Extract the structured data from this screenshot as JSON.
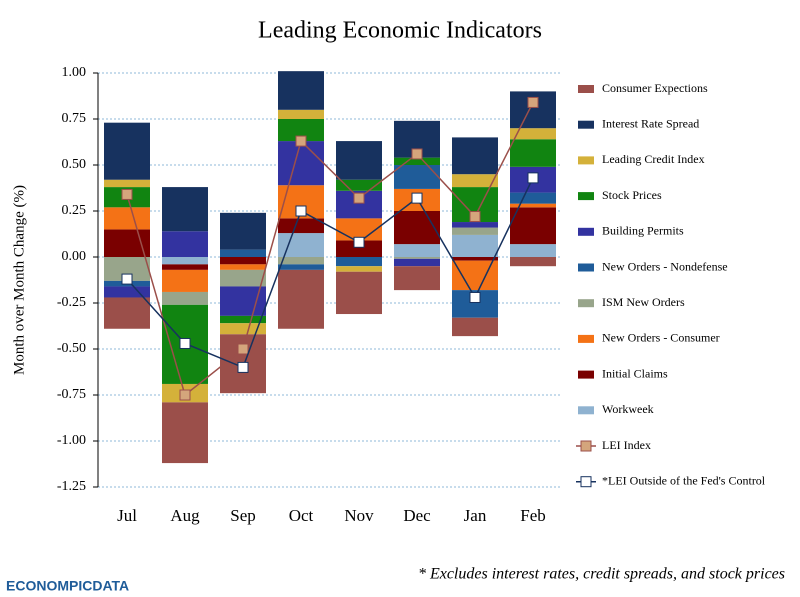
{
  "chart_data": {
    "type": "bar",
    "title": "Leading Economic Indicators",
    "y_label": "Month over Month Change (%)",
    "footnote": "* Excludes interest rates, credit spreads, and stock prices",
    "logo": "ECONOMPICDATA",
    "categories": [
      "Jul",
      "Aug",
      "Sep",
      "Oct",
      "Nov",
      "Dec",
      "Jan",
      "Feb"
    ],
    "ylim": [
      -1.25,
      1.0
    ],
    "yticks": [
      {
        "value": 1.0,
        "label": "1.00"
      },
      {
        "value": 0.75,
        "label": "0.75"
      },
      {
        "value": 0.5,
        "label": "0.50"
      },
      {
        "value": 0.25,
        "label": "0.25"
      },
      {
        "value": 0.0,
        "label": "0.00"
      },
      {
        "value": -0.25,
        "label": "-0.25"
      },
      {
        "value": -0.5,
        "label": "-0.50"
      },
      {
        "value": -0.75,
        "label": "-0.75"
      },
      {
        "value": -1.0,
        "label": "-1.00"
      },
      {
        "value": -1.25,
        "label": "-1.25"
      }
    ],
    "grid": true,
    "series": [
      {
        "name": "Consumer Expections",
        "type": "bar",
        "color": "#9b4f4a",
        "values": [
          -0.17,
          -0.33,
          -0.32,
          -0.32,
          -0.23,
          -0.13,
          -0.1,
          -0.05
        ]
      },
      {
        "name": "Interest Rate Spread",
        "type": "bar",
        "color": "#17325f",
        "values": [
          0.31,
          0.24,
          0.2,
          0.21,
          0.21,
          0.2,
          0.2,
          0.2
        ]
      },
      {
        "name": "Leading Credit Index",
        "type": "bar",
        "color": "#d4b13a",
        "values": [
          0.04,
          -0.1,
          -0.06,
          0.05,
          -0.03,
          0,
          0.07,
          0.06
        ]
      },
      {
        "name": "Stock Prices",
        "type": "bar",
        "color": "#118411",
        "values": [
          0.11,
          -0.43,
          -0.04,
          0.12,
          0.06,
          0.04,
          0.19,
          0.15
        ]
      },
      {
        "name": "Building Permits",
        "type": "bar",
        "color": "#3333a0",
        "values": [
          -0.06,
          0.14,
          -0.16,
          0.24,
          0.15,
          -0.04,
          0.03,
          0.14
        ]
      },
      {
        "name": "New Orders - Nondefense",
        "type": "bar",
        "color": "#1f5c99",
        "values": [
          -0.03,
          0,
          0.04,
          -0.03,
          -0.05,
          0.13,
          -0.15,
          0.06
        ]
      },
      {
        "name": "ISM New Orders",
        "type": "bar",
        "color": "#98a58b",
        "values": [
          -0.13,
          -0.07,
          -0.09,
          -0.04,
          0,
          -0.01,
          0.04,
          0
        ]
      },
      {
        "name": "New Orders - Consumer",
        "type": "bar",
        "color": "#f47216",
        "values": [
          0.12,
          -0.12,
          -0.03,
          0.18,
          0.12,
          0.12,
          -0.16,
          0.02
        ]
      },
      {
        "name": "Initial Claims",
        "type": "bar",
        "color": "#7a0000",
        "values": [
          0.15,
          -0.03,
          -0.04,
          0.08,
          0.09,
          0.18,
          -0.02,
          0.2
        ]
      },
      {
        "name": "Workweek",
        "type": "bar",
        "color": "#8fb2d0",
        "values": [
          0,
          -0.04,
          0,
          0.13,
          0,
          0.07,
          0.12,
          0.07
        ]
      },
      {
        "name": "LEI Index",
        "type": "line",
        "color": "#9b4f4a",
        "marker_color": "#d4a57c",
        "values": [
          0.34,
          -0.75,
          -0.5,
          0.63,
          0.32,
          0.56,
          0.22,
          0.84
        ]
      },
      {
        "name": "*LEI Outside of the Fed's Control",
        "type": "line",
        "color": "#17325f",
        "marker_color": "#ffffff",
        "values": [
          -0.12,
          -0.47,
          -0.6,
          0.25,
          0.08,
          0.32,
          -0.22,
          0.43
        ]
      }
    ]
  }
}
